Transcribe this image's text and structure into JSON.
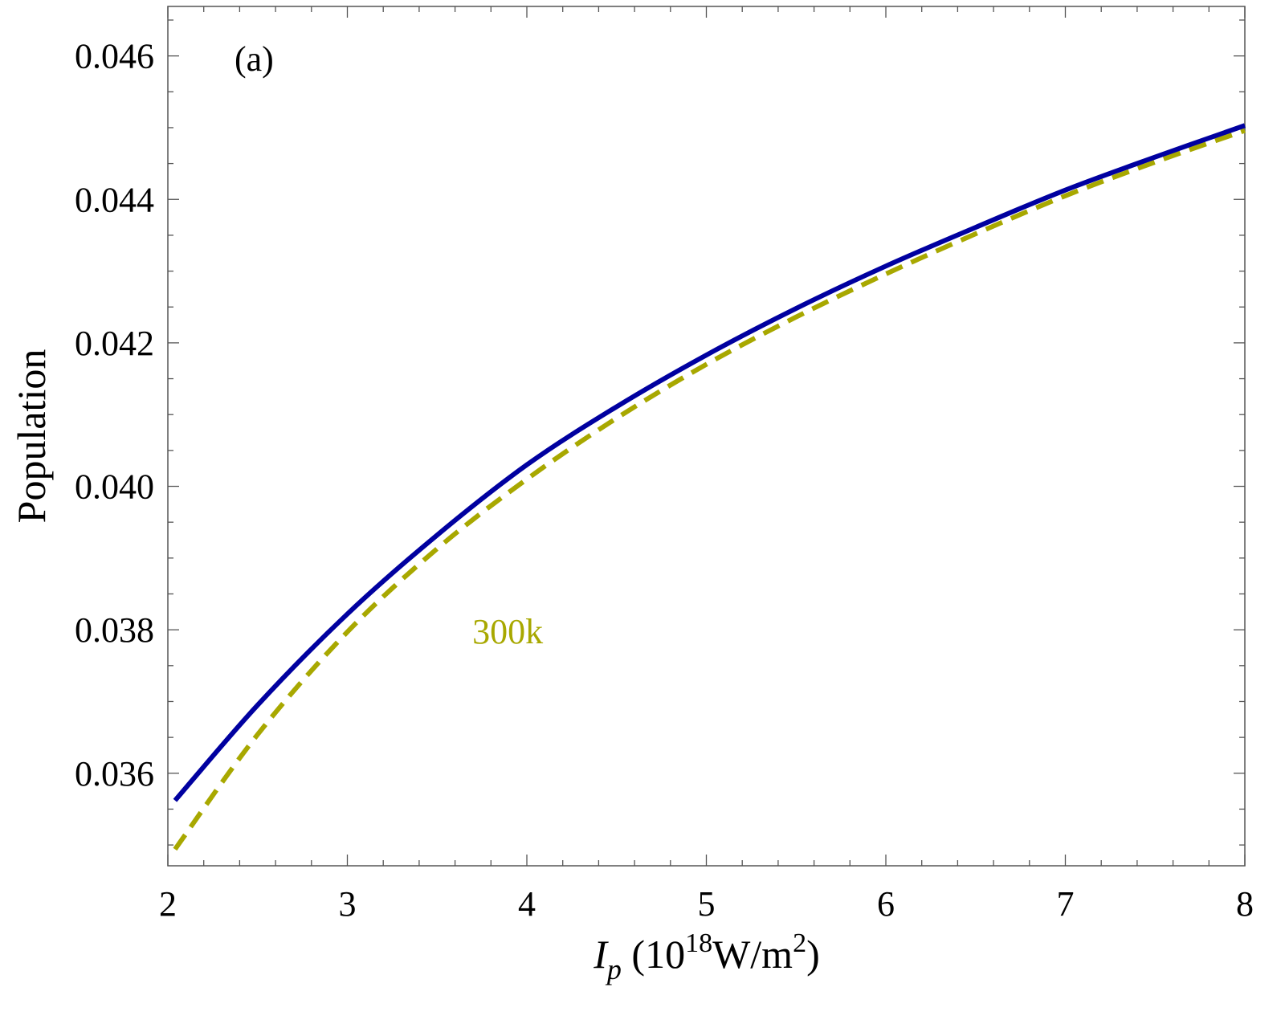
{
  "chart_data": {
    "type": "line",
    "title": "",
    "panel_label": "(a)",
    "xlabel": {
      "symbol": "I",
      "subscript": "p",
      "unit_prefix": " (10",
      "exponent": "18",
      "unit_mid": "W/m",
      "unit_exp": "2",
      "unit_suffix": ")"
    },
    "ylabel": "Population",
    "xlim": [
      2,
      8
    ],
    "ylim": [
      0.03471,
      0.04669
    ],
    "xticks": [
      2,
      3,
      4,
      5,
      6,
      7,
      8
    ],
    "xtick_labels": [
      "2",
      "3",
      "4",
      "5",
      "6",
      "7",
      "8"
    ],
    "yticks": [
      0.036,
      0.038,
      0.04,
      0.042,
      0.044,
      0.046
    ],
    "ytick_labels": [
      "0.036",
      "0.038",
      "0.040",
      "0.042",
      "0.044",
      "0.046"
    ],
    "grid": false,
    "annotation": {
      "text": "300k",
      "x": 3.75,
      "y": 0.038,
      "color": "#A8A800"
    },
    "series": [
      {
        "name": "solid",
        "color": "#0000A0",
        "style": "solid",
        "x": [
          2.04,
          2.5,
          3,
          3.5,
          4,
          4.5,
          5,
          5.5,
          6,
          6.5,
          7,
          7.5,
          8
        ],
        "y": [
          0.03562,
          0.03695,
          0.03822,
          0.03932,
          0.0403,
          0.04111,
          0.04183,
          0.04248,
          0.04307,
          0.04361,
          0.04413,
          0.04459,
          0.04503
        ]
      },
      {
        "name": "300k",
        "color": "#A8A800",
        "style": "dashed",
        "x": [
          2.04,
          2.5,
          3,
          3.5,
          4,
          4.5,
          5,
          5.5,
          6,
          6.5,
          7,
          7.5,
          8
        ],
        "y": [
          0.03494,
          0.03654,
          0.03797,
          0.03913,
          0.0401,
          0.04095,
          0.0417,
          0.04236,
          0.04296,
          0.04352,
          0.04405,
          0.04452,
          0.04496
        ]
      }
    ]
  }
}
